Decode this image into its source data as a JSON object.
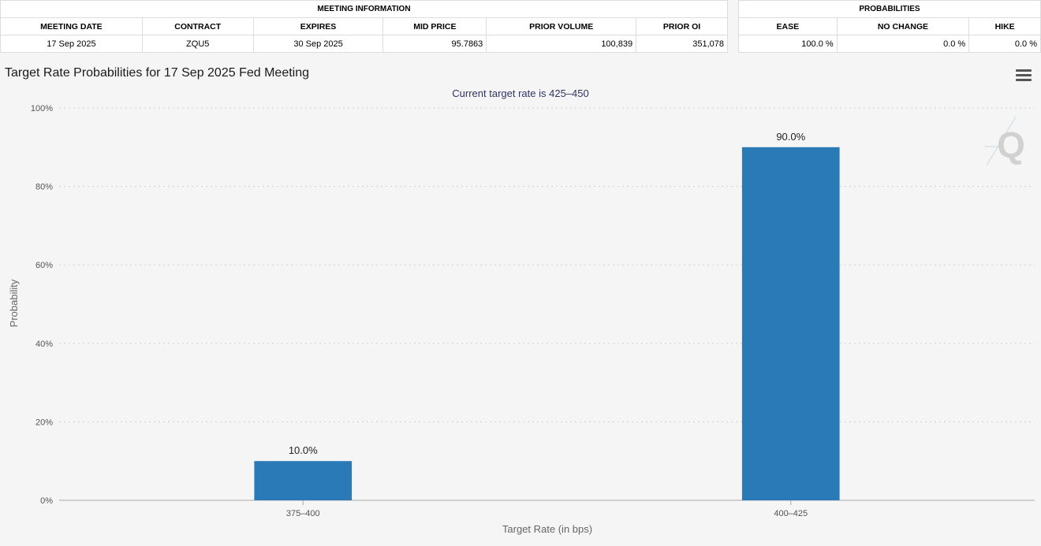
{
  "meeting_info": {
    "group_label": "MEETING INFORMATION",
    "headers": [
      "MEETING DATE",
      "CONTRACT",
      "EXPIRES",
      "MID PRICE",
      "PRIOR VOLUME",
      "PRIOR OI"
    ],
    "row": [
      "17 Sep 2025",
      "ZQU5",
      "30 Sep 2025",
      "95.7863",
      "100,839",
      "351,078"
    ]
  },
  "probabilities": {
    "group_label": "PROBABILITIES",
    "headers": [
      "EASE",
      "NO CHANGE",
      "HIKE"
    ],
    "row": [
      "100.0 %",
      "0.0 %",
      "0.0 %"
    ]
  },
  "chart_title": "Target Rate Probabilities for 17 Sep 2025 Fed Meeting",
  "menu_icon": "hamburger-menu-icon",
  "watermark_icon": "q-logo-icon",
  "colors": {
    "bar": "#2a7ab8",
    "background": "#f5f5f5"
  },
  "chart_data": {
    "type": "bar",
    "title": "Target Rate Probabilities for 17 Sep 2025 Fed Meeting",
    "subtitle": "Current target rate is 425–450",
    "categories": [
      "375–400",
      "400–425"
    ],
    "values": [
      10.0,
      90.0
    ],
    "data_labels": [
      "10.0%",
      "90.0%"
    ],
    "xlabel": "Target Rate (in bps)",
    "ylabel": "Probability",
    "ylim": [
      0,
      100
    ],
    "yticks": [
      "0%",
      "20%",
      "40%",
      "60%",
      "80%",
      "100%"
    ],
    "grid": true
  }
}
